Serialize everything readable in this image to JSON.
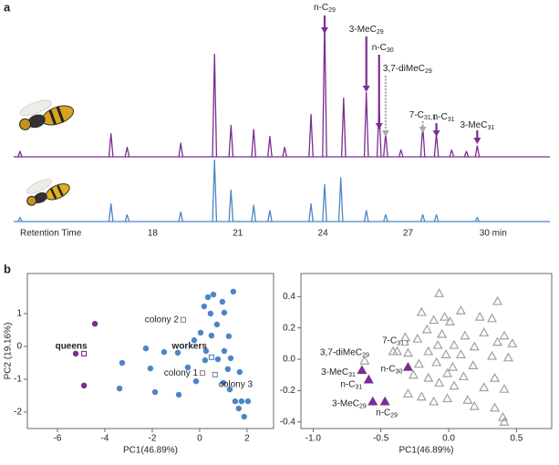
{
  "panels": [
    "a",
    "b"
  ],
  "chart_data": [
    {
      "type": "chromatogram",
      "xlabel": "Retention Time",
      "xlim": [
        13.1,
        32.0
      ],
      "xticks": [
        18,
        21,
        24,
        27,
        {
          "value": 30,
          "label": "30 min"
        }
      ],
      "ylim": [
        0,
        100
      ],
      "series": [
        {
          "color": "#7b2d92",
          "x": [
            13.32,
            16.53,
            17.1,
            18.99,
            20.18,
            20.76,
            21.56,
            22.13,
            22.65,
            23.58,
            24.06,
            24.73,
            25.53,
            25.98,
            26.21,
            26.75,
            27.52,
            28.0,
            28.54,
            29.06,
            29.44
          ],
          "values": [
            4,
            17,
            7,
            10,
            75,
            23,
            20,
            15,
            7,
            31,
            100,
            43,
            47,
            37,
            17,
            5,
            23,
            17,
            5,
            4,
            8
          ]
        },
        {
          "color": "#4a86c5",
          "x": [
            13.32,
            16.53,
            17.1,
            18.99,
            20.18,
            20.76,
            21.56,
            22.13,
            23.58,
            24.06,
            24.63,
            25.53,
            26.21,
            27.52,
            28.0,
            29.44
          ],
          "values": [
            3,
            13,
            5,
            7,
            45,
            23,
            12,
            8,
            13,
            27,
            32,
            8,
            5,
            5,
            5,
            3
          ]
        }
      ],
      "annotations": [
        {
          "x": 24.06,
          "label": [
            "n-C",
            "29"
          ],
          "color": "#7b2d92",
          "style": "solid"
        },
        {
          "x": 25.53,
          "label": [
            "3-MeC",
            "29"
          ],
          "color": "#7b2d92",
          "style": "solid"
        },
        {
          "x": 25.98,
          "label": [
            "n-C",
            "30"
          ],
          "color": "#7b2d92",
          "style": "solid"
        },
        {
          "x": 26.21,
          "label": [
            "3,7-diMeC",
            "29"
          ],
          "color": "#aaaaaa",
          "style": "dashed"
        },
        {
          "x": 27.52,
          "label": [
            "7-C",
            "31,1"
          ],
          "color": "#aaaaaa",
          "style": "dashed"
        },
        {
          "x": 28.0,
          "label": [
            "n-C",
            "31"
          ],
          "color": "#7b2d92",
          "style": "solid"
        },
        {
          "x": 29.44,
          "label": [
            "3-MeC",
            "31"
          ],
          "color": "#7b2d92",
          "style": "solid"
        }
      ]
    },
    {
      "type": "scatter",
      "xlabel": "PC1(46.89%)",
      "ylabel": "PC2 (19.16%)",
      "xlim": [
        -7.27,
        3.12
      ],
      "ylim": [
        -2.5,
        2.22
      ],
      "xticks": [
        -6,
        -4,
        -2,
        0,
        2
      ],
      "yticks": [
        -2,
        -1,
        0,
        1
      ],
      "series": [
        {
          "color": "#7b2d92",
          "marker": "dot",
          "x": [
            -4.42,
            -5.23,
            -4.88
          ],
          "values": [
            0.69,
            -0.22,
            -1.19
          ]
        },
        {
          "color": "#4a86c5",
          "marker": "dot",
          "x": [
            0.35,
            0.58,
            1.42,
            0.96,
            0.19,
            0.46,
            1.04,
            0.73,
            0.04,
            0.5,
            1.23,
            -0.23,
            0.27,
            1.04,
            1.31,
            0.23,
            0.77,
            -2.27,
            -1.5,
            -0.92,
            -3.27,
            -2.08,
            -0.5,
            -0.15,
            1.19,
            1.69,
            -1.88,
            -3.38,
            -0.88,
            1.27,
            1.5,
            1.77,
            2.04,
            1.88,
            1.65,
            1.0
          ],
          "values": [
            1.5,
            1.58,
            1.67,
            1.36,
            1.22,
            1.0,
            1.03,
            0.67,
            0.42,
            0.33,
            0.31,
            0.19,
            -0.14,
            -0.14,
            -0.36,
            -0.42,
            -0.39,
            -0.06,
            -0.17,
            -0.19,
            -0.5,
            -0.67,
            -0.64,
            -1.06,
            -0.69,
            -0.78,
            -1.39,
            -1.28,
            -1.47,
            -1.31,
            -1.67,
            -1.67,
            -1.67,
            -2.14,
            -1.89,
            -1.11
          ]
        }
      ],
      "centroids": [
        {
          "label": "queens",
          "color": "#7b2d92",
          "x": -4.88,
          "y": -0.22
        },
        {
          "label": "workers",
          "color": "#4a86c5",
          "x": 0.5,
          "y": -0.33
        },
        {
          "label": "colony 2",
          "color": "#888888",
          "x": -0.69,
          "y": 0.81
        },
        {
          "label": "colony 1",
          "color": "#888888",
          "x": 0.12,
          "y": -0.81
        },
        {
          "label": "colony 3",
          "color": "#888888",
          "x": 0.65,
          "y": -0.86
        }
      ]
    },
    {
      "type": "scatter",
      "xlabel": "PC1(46.89%)",
      "xlim": [
        -1.09,
        0.76
      ],
      "ylim": [
        -0.442,
        0.547
      ],
      "xticks": [
        {
          "value": -1,
          "label": "-1.0"
        },
        -0.5,
        {
          "value": 0,
          "label": "0.0"
        },
        0.5
      ],
      "yticks": [
        0.4,
        0.2,
        {
          "value": 0,
          "label": "0.0"
        },
        -0.2,
        -0.4
      ],
      "series": [
        {
          "color": "#a0a0a0",
          "marker": "open-triangle",
          "x": [
            -0.07,
            0.36,
            -0.2,
            0.09,
            -0.03,
            -0.11,
            0.01,
            0.23,
            -0.16,
            -0.05,
            0.12,
            0.26,
            -0.32,
            -0.23,
            -0.08,
            0.04,
            0.19,
            0.36,
            0.41,
            -0.38,
            -0.3,
            -0.15,
            -0.02,
            0.09,
            0.32,
            0.44,
            -0.22,
            -0.09,
            0.03,
            0.18,
            -0.26,
            -0.15,
            0.11,
            0.34,
            -0.07,
            0.04,
            0.26,
            0.41,
            -0.3,
            -0.2,
            -0.01,
            0.14,
            0.19,
            0.34,
            0.4,
            0.41,
            0.47,
            -0.11,
            -0.01,
            0.32
          ],
          "values": [
            0.42,
            0.37,
            0.3,
            0.31,
            0.27,
            0.25,
            0.24,
            0.27,
            0.19,
            0.16,
            0.15,
            0.17,
            0.14,
            0.13,
            0.09,
            0.09,
            0.08,
            0.11,
            0.15,
            0.05,
            0.04,
            0.05,
            0.03,
            0.03,
            0.02,
            0.01,
            -0.03,
            -0.02,
            -0.05,
            -0.04,
            -0.1,
            -0.12,
            -0.11,
            -0.12,
            -0.15,
            -0.17,
            -0.18,
            -0.19,
            -0.22,
            -0.24,
            -0.25,
            -0.26,
            -0.3,
            -0.31,
            -0.37,
            -0.4,
            0.1,
            -0.27,
            -0.09,
            0.26
          ]
        },
        {
          "color": "#7b2d92",
          "marker": "filled-triangle",
          "x": [
            -0.64,
            -0.59,
            -0.3,
            -0.56,
            -0.47
          ],
          "values": [
            -0.07,
            -0.13,
            -0.05,
            -0.27,
            -0.27
          ],
          "labels": [
            [
              "3-MeC",
              "31"
            ],
            [
              "n-C",
              "31"
            ],
            [
              "n-C",
              "30"
            ],
            [
              "3-MeC",
              "29"
            ],
            [
              "n-C",
              "29"
            ]
          ]
        },
        {
          "color": "#a0a0a0",
          "marker": "open-triangle",
          "x": [
            -0.62,
            -0.41
          ],
          "values": [
            -0.01,
            0.05
          ],
          "labels": [
            [
              "3,7-diMeC",
              "29"
            ],
            [
              "7-C",
              "31,1"
            ]
          ]
        }
      ]
    }
  ]
}
